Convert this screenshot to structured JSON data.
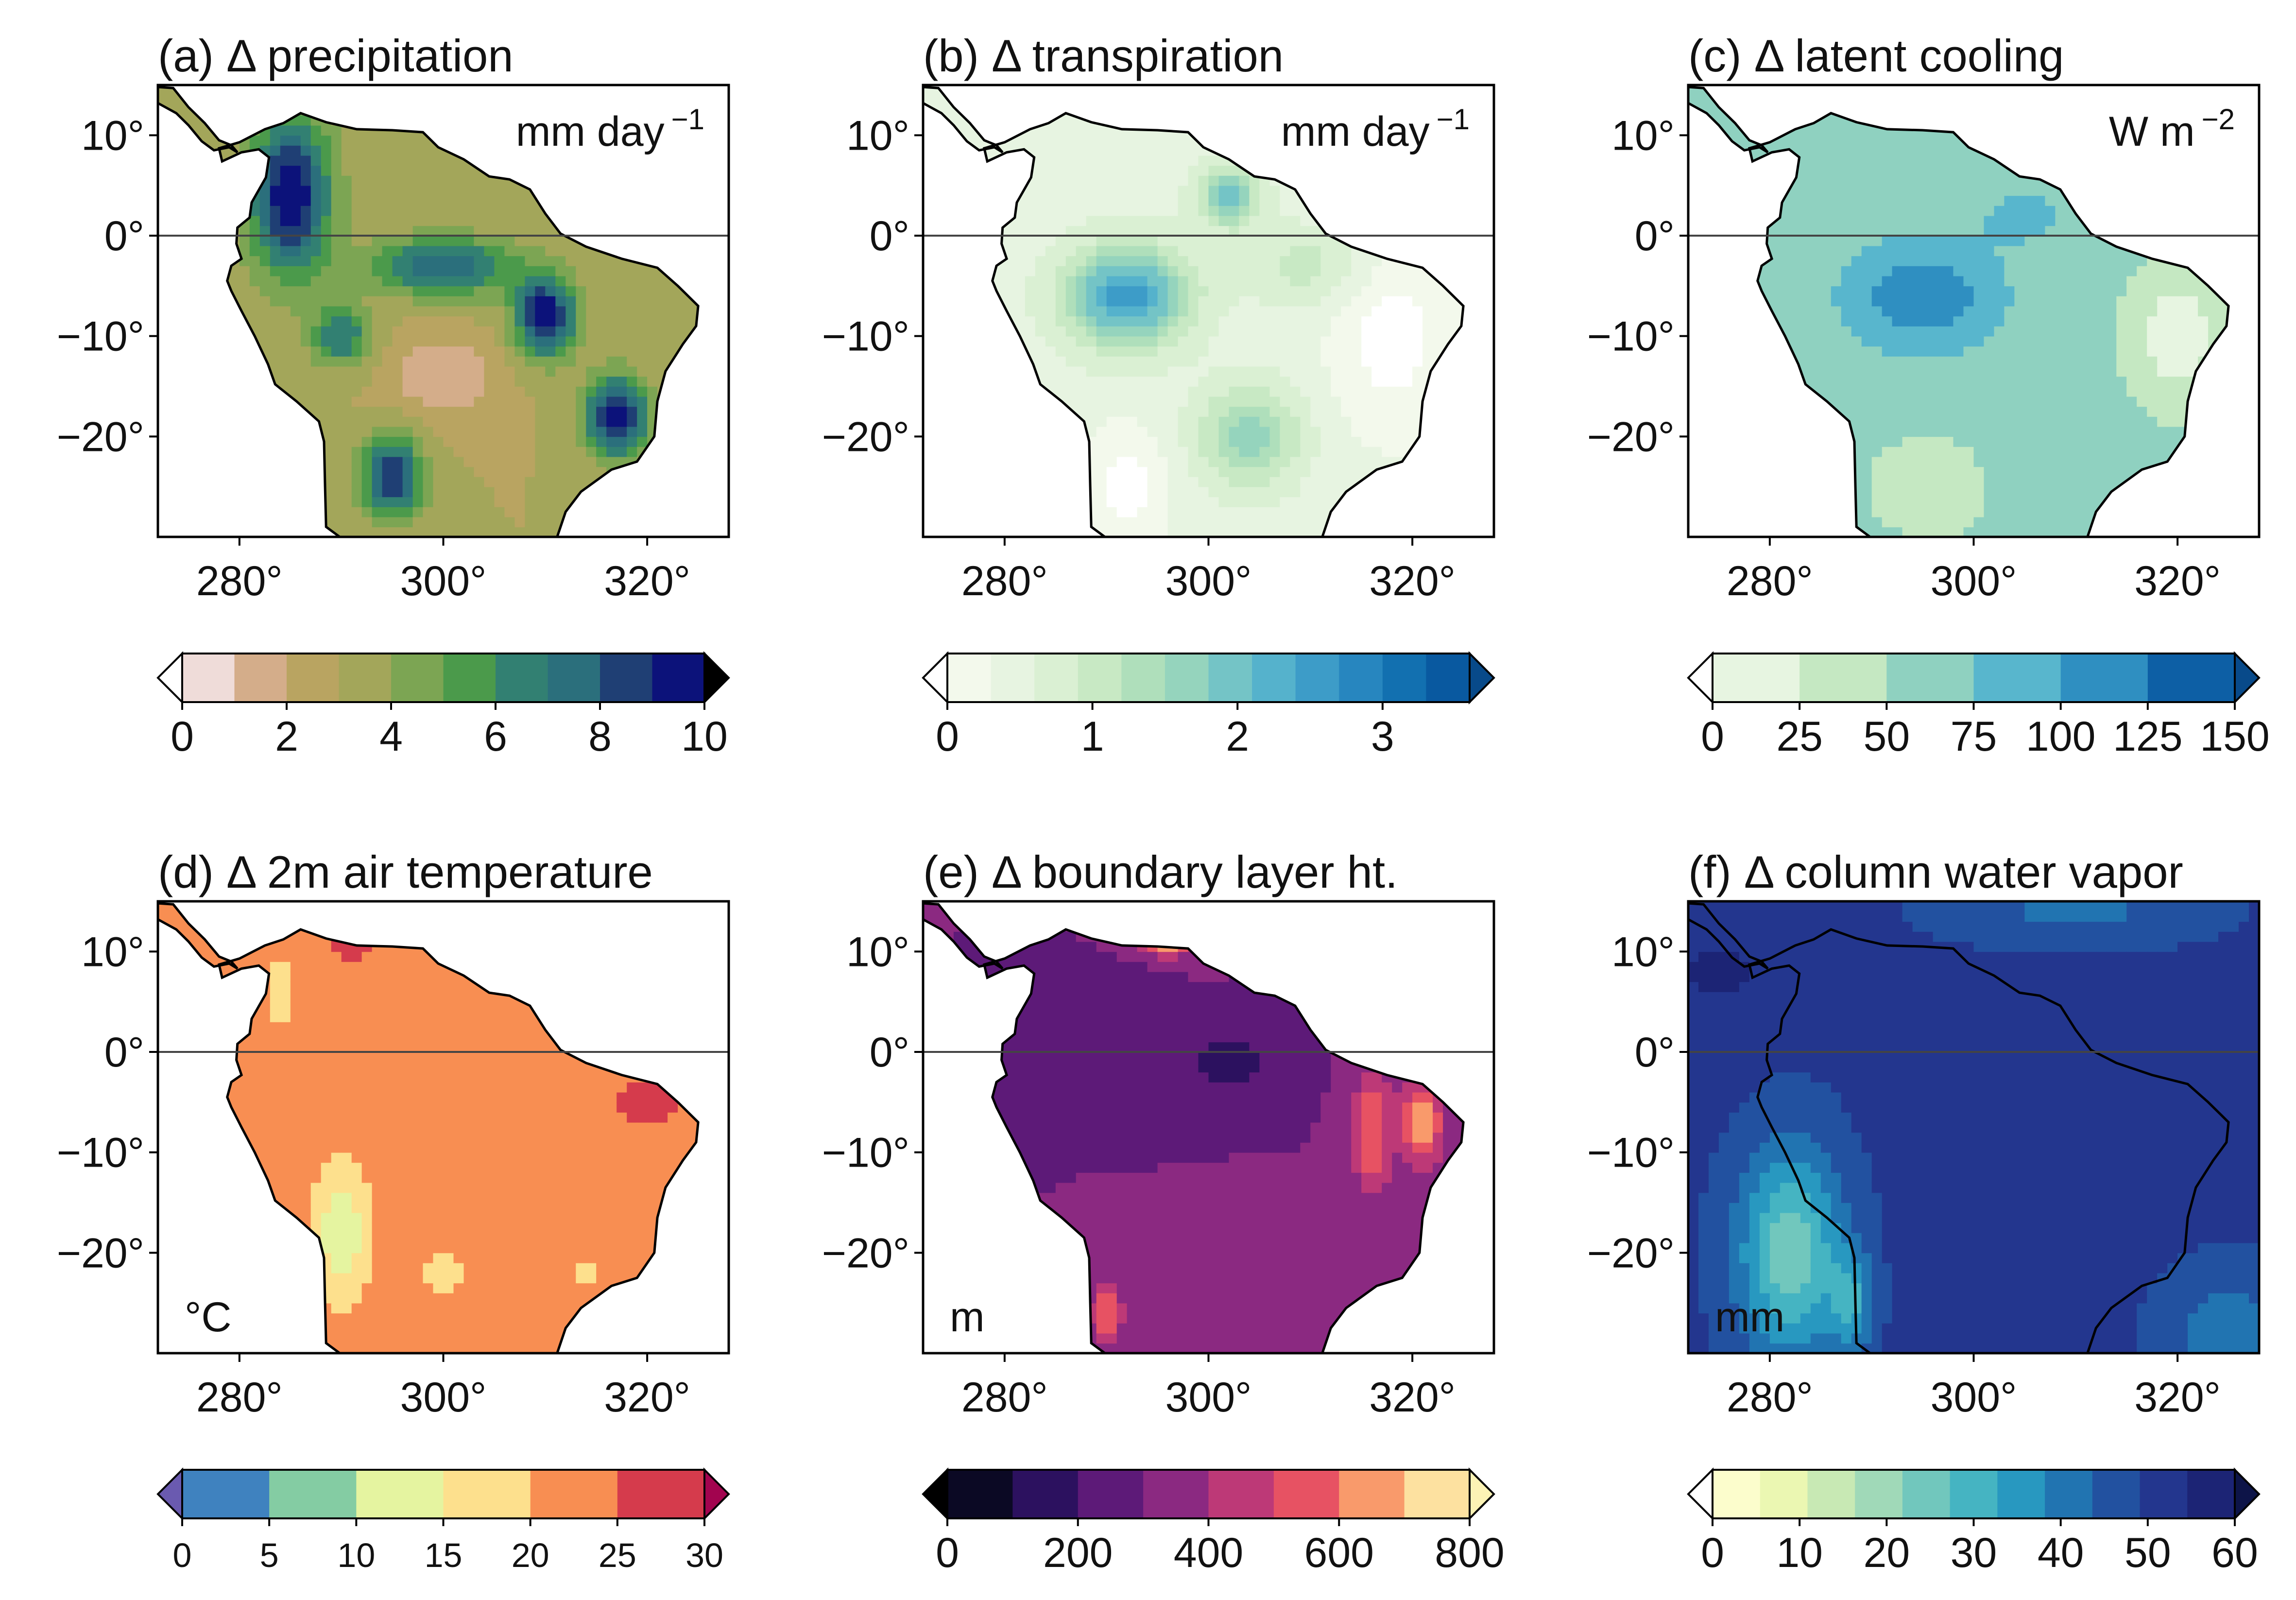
{
  "map": {
    "lon_range": [
      272,
      328
    ],
    "lat_range": [
      -30,
      15
    ],
    "equator_lat": 0,
    "lon_tick_labels": [
      "280°",
      "300°",
      "320°"
    ],
    "lat_tick_labels": [
      "10°",
      "0°",
      "−10°",
      "−20°"
    ]
  },
  "panels": [
    {
      "id": "a",
      "title": "(a) Δ precipitation",
      "unit": "mm day",
      "unit_exp": "−1",
      "unit_place": "top-right",
      "field": "precipitation",
      "colorbar": {
        "ticks": [
          "0",
          "2",
          "4",
          "6",
          "8",
          "10"
        ],
        "colors": [
          "#efdcd9",
          "#d4ad8a",
          "#b9a461",
          "#a3a65a",
          "#7ca553",
          "#4b9a4b",
          "#328072",
          "#2b6f7c",
          "#1f3f74",
          "#0c127a"
        ],
        "under": "#ffffff",
        "over": "#000000"
      }
    },
    {
      "id": "b",
      "title": "(b) Δ transpiration",
      "unit": "mm day",
      "unit_exp": "−1",
      "unit_place": "top-right",
      "field": "transpiration",
      "colorbar": {
        "ticks": [
          "0",
          "1",
          "2",
          "3"
        ],
        "colors": [
          "#f3f9ec",
          "#e7f4e1",
          "#daf0d3",
          "#c8e9c4",
          "#afdfbb",
          "#95d4bd",
          "#74c4c6",
          "#55b2cc",
          "#3d9cc8",
          "#2786bf",
          "#1270b0",
          "#0959a0"
        ],
        "under": "#ffffff",
        "over": "#084a8a"
      }
    },
    {
      "id": "c",
      "title": "(c) Δ latent cooling",
      "unit": "W m",
      "unit_exp": "−2",
      "unit_place": "top-right",
      "field": "latent",
      "colorbar": {
        "ticks": [
          "0",
          "25",
          "50",
          "75",
          "100",
          "125",
          "150"
        ],
        "colors": [
          "#e7f5e1",
          "#c5e8c2",
          "#8fd1c0",
          "#58b6cd",
          "#2f8fc1",
          "#0d5fa5"
        ],
        "under": "#ffffff",
        "over": "#084a8a"
      }
    },
    {
      "id": "d",
      "title": "(d) Δ 2m air temperature",
      "unit": "°C",
      "unit_exp": "",
      "unit_place": "bottom-left",
      "field": "temperature",
      "colorbar": {
        "ticks": [
          "0",
          "5",
          "10",
          "15",
          "20",
          "25",
          "30"
        ],
        "colors": [
          "#3f82bf",
          "#84cca3",
          "#e5f4a0",
          "#fde08d",
          "#f88e52",
          "#d53b4c"
        ],
        "under": "#6a5ab0",
        "over": "#a2044f"
      }
    },
    {
      "id": "e",
      "title": "(e) Δ boundary layer ht.",
      "unit": "m",
      "unit_exp": "",
      "unit_place": "bottom-left",
      "field": "blh",
      "colorbar": {
        "ticks": [
          "0",
          "200",
          "400",
          "600",
          "800"
        ],
        "colors": [
          "#0b0924",
          "#2c115f",
          "#5d1a78",
          "#8b2981",
          "#bd3977",
          "#e75263",
          "#f99a6b",
          "#fde1a0"
        ],
        "under": "#000000",
        "over": "#fcf3b5"
      }
    },
    {
      "id": "f",
      "title": "(f) Δ column water vapor",
      "unit": "mm",
      "unit_exp": "",
      "unit_place": "bottom-left",
      "field": "cwv",
      "colorbar": {
        "ticks": [
          "0",
          "10",
          "20",
          "30",
          "40",
          "50",
          "60"
        ],
        "colors": [
          "#fcfdcc",
          "#ebf7b2",
          "#c8e9b4",
          "#a0d9b8",
          "#71c7bd",
          "#45b4c2",
          "#2898c0",
          "#2174b1",
          "#2251a0",
          "#23368e",
          "#1c2475"
        ],
        "under": "#ffffff",
        "over": "#0d1448"
      }
    }
  ]
}
